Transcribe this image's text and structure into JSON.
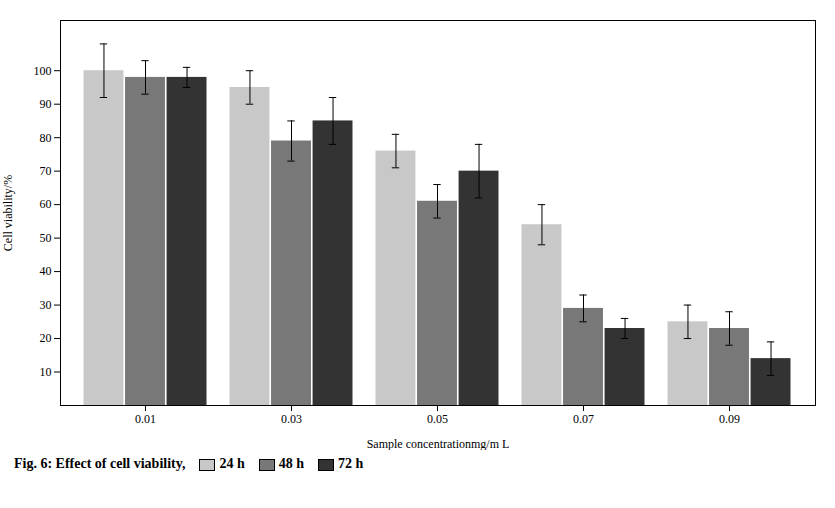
{
  "chart_data": {
    "type": "bar",
    "title": "Fig. 6: Effect of cell viability,",
    "categories": [
      "0.01",
      "0.03",
      "0.05",
      "0.07",
      "0.09"
    ],
    "series": [
      {
        "name": "24 h",
        "color": "#c8c8c8",
        "values": [
          100,
          95,
          76,
          54,
          25
        ],
        "errors": [
          8,
          5,
          5,
          6,
          5
        ]
      },
      {
        "name": "48 h",
        "color": "#787878",
        "values": [
          98,
          79,
          61,
          29,
          23
        ],
        "errors": [
          5,
          6,
          5,
          4,
          5
        ]
      },
      {
        "name": "72 h",
        "color": "#333333",
        "values": [
          98,
          85,
          70,
          23,
          14
        ],
        "errors": [
          3,
          7,
          8,
          3,
          5
        ]
      }
    ],
    "xlabel": "Sample concentrationmg/m L",
    "ylabel": "Cell viability/%",
    "ylim": [
      0,
      115
    ],
    "yticks": [
      10,
      20,
      30,
      40,
      50,
      60,
      70,
      80,
      90,
      100
    ],
    "grid": false,
    "legend": "bottom"
  }
}
